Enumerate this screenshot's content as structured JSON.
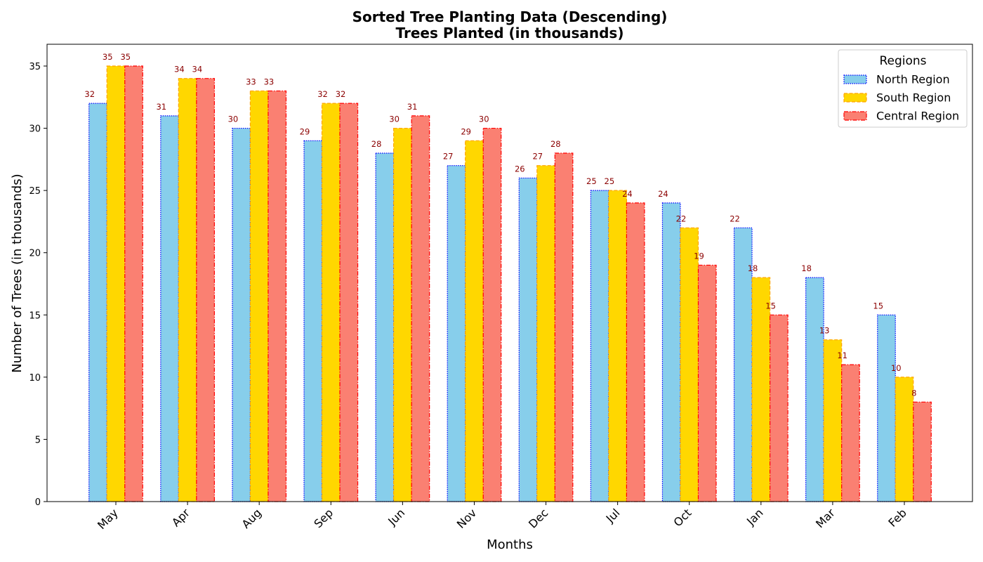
{
  "chart_data": {
    "type": "bar",
    "title": "Sorted Tree Planting Data (Descending)",
    "subtitle": "Trees Planted (in thousands)",
    "xlabel": "Months",
    "ylabel": "Number of Trees (in thousands)",
    "categories": [
      "May",
      "Apr",
      "Aug",
      "Sep",
      "Jun",
      "Nov",
      "Dec",
      "Jul",
      "Oct",
      "Jan",
      "Mar",
      "Feb"
    ],
    "ylim": [
      0,
      36.75
    ],
    "yticks": [
      "0",
      "5",
      "10",
      "15",
      "20",
      "25",
      "30",
      "35"
    ],
    "grid": false,
    "legend": {
      "title": "Regions",
      "placement": "top-right"
    },
    "series": [
      {
        "name": "North Region",
        "values": [
          32,
          31,
          30,
          29,
          28,
          27,
          26,
          25,
          24,
          22,
          18,
          15
        ],
        "color": "#87ceeb",
        "edge": "#0000ff",
        "style": "dotted"
      },
      {
        "name": "South Region",
        "values": [
          35,
          34,
          33,
          32,
          30,
          29,
          27,
          25,
          22,
          18,
          13,
          10
        ],
        "color": "#ffd700",
        "edge": "#ffa500",
        "style": "dashed"
      },
      {
        "name": "Central Region",
        "values": [
          35,
          34,
          33,
          32,
          31,
          30,
          28,
          24,
          19,
          15,
          11,
          8
        ],
        "color": "#fa8072",
        "edge": "#ff0000",
        "style": "dashdot"
      }
    ],
    "label_color": "#8b0000"
  }
}
